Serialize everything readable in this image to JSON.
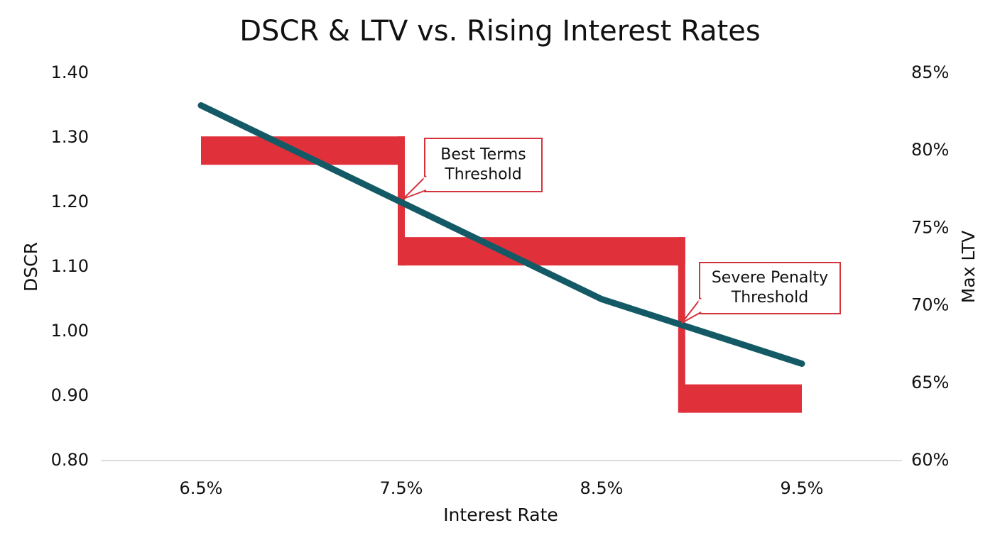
{
  "chart_data": {
    "type": "line",
    "title": "DSCR & LTV vs. Rising Interest Rates",
    "x_label": "Interest Rate",
    "y_label": "DSCR",
    "y2_label": "Max LTV",
    "xlim": [
      6.0,
      10.0
    ],
    "xticks": [
      {
        "value": 6.5,
        "label": "6.5%"
      },
      {
        "value": 7.5,
        "label": "7.5%"
      },
      {
        "value": 8.5,
        "label": "8.5%"
      },
      {
        "value": 9.5,
        "label": "9.5%"
      }
    ],
    "ylim": [
      0.8,
      1.4
    ],
    "yticks": [
      {
        "value": 0.8,
        "label": "0.80"
      },
      {
        "value": 0.9,
        "label": "0.90"
      },
      {
        "value": 1.0,
        "label": "1.00"
      },
      {
        "value": 1.1,
        "label": "1.10"
      },
      {
        "value": 1.2,
        "label": "1.20"
      },
      {
        "value": 1.3,
        "label": "1.30"
      },
      {
        "value": 1.4,
        "label": "1.40"
      }
    ],
    "y2lim": [
      60,
      85
    ],
    "y2ticks": [
      {
        "value": 60,
        "label": "60%"
      },
      {
        "value": 65,
        "label": "65%"
      },
      {
        "value": 70,
        "label": "70%"
      },
      {
        "value": 75,
        "label": "75%"
      },
      {
        "value": 80,
        "label": "80%"
      },
      {
        "value": 85,
        "label": "85%"
      }
    ],
    "grid": false,
    "series": [
      {
        "color": "#e0303a",
        "axis": "y2",
        "style": "step",
        "x": [
          6.5,
          7.5,
          8.9,
          9.5
        ],
        "values": [
          80,
          73.5,
          64,
          64
        ]
      },
      {
        "color": "#145a66",
        "axis": "y",
        "style": "line",
        "x": [
          6.5,
          7.5,
          8.5,
          9.5
        ],
        "values": [
          1.35,
          1.2,
          1.05,
          0.95
        ]
      }
    ],
    "annotations": [
      {
        "lines": [
          "Best Terms",
          "Threshold"
        ]
      },
      {
        "lines": [
          "Severe Penalty",
          "Threshold"
        ]
      }
    ]
  }
}
